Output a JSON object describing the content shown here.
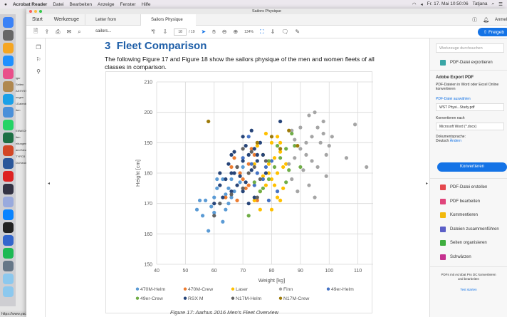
{
  "menubar": {
    "app": "Acrobat Reader",
    "items": [
      "Datei",
      "Bearbeiten",
      "Anzeige",
      "Fenster",
      "Hilfe"
    ],
    "datetime": "Fr. 17. Mai 10:50:06",
    "user": "Tatjana"
  },
  "background": {
    "texts": [
      "iger",
      "Seiten",
      "ASSYSTEM",
      "ungen",
      "l-Datenbank",
      "iten",
      "ENWICKLU",
      "iten",
      "eitungen",
      "and News",
      "TYPO3",
      "Dt-Handbuch"
    ],
    "url": "https://www.yacht"
  },
  "window": {
    "title": "Sailors Physique",
    "tabs": {
      "start": "Start",
      "tools": "Werkzeuge",
      "doc1": "Letter from sailors...",
      "doc2": "Sailors Physique"
    },
    "signin": "Anmel",
    "toolbar": {
      "page_current": "18",
      "page_total": "/ 19",
      "zoom": "134%",
      "share": "Freigeb"
    }
  },
  "document": {
    "heading_num": "3",
    "heading": "Fleet Comparison",
    "paragraph": "The following Figure 17 and Figure 18 show the sailors physique of the men and women fleets of all classes in comparison.",
    "caption": "Figure 17: Aarhus 2016 Men's Fleet Overview"
  },
  "chart_data": {
    "type": "scatter",
    "xlabel": "Weight [kg]",
    "ylabel": "Height [cm]",
    "xlim": [
      40,
      120
    ],
    "ylim": [
      150,
      210
    ],
    "xticks": [
      40,
      50,
      60,
      70,
      80,
      90,
      100,
      110,
      120
    ],
    "yticks": [
      150,
      160,
      170,
      180,
      190,
      200,
      210
    ],
    "grid": true,
    "legend": "bottom",
    "series": [
      {
        "name": "470M-Helm",
        "color": "#5b9bd5",
        "points": [
          [
            58,
            161
          ],
          [
            56,
            166
          ],
          [
            54,
            168
          ],
          [
            60,
            167
          ],
          [
            62,
            170
          ],
          [
            64,
            173
          ],
          [
            65,
            175
          ],
          [
            60,
            172
          ],
          [
            62,
            176
          ],
          [
            66,
            178
          ],
          [
            64,
            168
          ],
          [
            59,
            169
          ],
          [
            63,
            178
          ],
          [
            67,
            174
          ],
          [
            61,
            175
          ],
          [
            57,
            171
          ],
          [
            65,
            170
          ],
          [
            69,
            177
          ],
          [
            70,
            182
          ],
          [
            66,
            172
          ],
          [
            63,
            164
          ],
          [
            55,
            171
          ],
          [
            61,
            178
          ]
        ]
      },
      {
        "name": "470M-Crew",
        "color": "#ed7d31",
        "points": [
          [
            68,
            171
          ],
          [
            70,
            178
          ],
          [
            72,
            183
          ],
          [
            74,
            186
          ],
          [
            66,
            182
          ],
          [
            73,
            188
          ],
          [
            71,
            175
          ],
          [
            75,
            171
          ],
          [
            69,
            180
          ],
          [
            67,
            185
          ],
          [
            64,
            172
          ],
          [
            72,
            176
          ]
        ]
      },
      {
        "name": "Laser",
        "color": "#ffc000",
        "points": [
          [
            74,
            171
          ],
          [
            76,
            174
          ],
          [
            78,
            176
          ],
          [
            80,
            178
          ],
          [
            82,
            180
          ],
          [
            79,
            183
          ],
          [
            81,
            185
          ],
          [
            83,
            187
          ],
          [
            84,
            182
          ],
          [
            77,
            186
          ],
          [
            80,
            190
          ],
          [
            82,
            192
          ],
          [
            75,
            189
          ],
          [
            78,
            193
          ],
          [
            84,
            175
          ],
          [
            82,
            172
          ],
          [
            80,
            168
          ],
          [
            83,
            171
          ],
          [
            76,
            168
          ],
          [
            79,
            180
          ],
          [
            81,
            176
          ],
          [
            85,
            183
          ],
          [
            77,
            179
          ],
          [
            83,
            190
          ],
          [
            74,
            183
          ]
        ]
      },
      {
        "name": "Finn",
        "color": "#a5a5a5",
        "points": [
          [
            86,
            183
          ],
          [
            88,
            185
          ],
          [
            90,
            188
          ],
          [
            92,
            190
          ],
          [
            94,
            192
          ],
          [
            96,
            195
          ],
          [
            98,
            197
          ],
          [
            95,
            200
          ],
          [
            90,
            195
          ],
          [
            88,
            191
          ],
          [
            92,
            186
          ],
          [
            97,
            190
          ],
          [
            99,
            186
          ],
          [
            94,
            184
          ],
          [
            91,
            181
          ],
          [
            93,
            176
          ],
          [
            96,
            182
          ],
          [
            100,
            189
          ],
          [
            101,
            192
          ],
          [
            98,
            193
          ],
          [
            87,
            178
          ],
          [
            89,
            174
          ],
          [
            95,
            172
          ],
          [
            109,
            196
          ],
          [
            106,
            185
          ],
          [
            113,
            182
          ],
          [
            93,
            199
          ],
          [
            87,
            194
          ],
          [
            99,
            179
          ]
        ]
      },
      {
        "name": "49er-Helm",
        "color": "#4472c4",
        "points": [
          [
            70,
            185
          ],
          [
            73,
            183
          ],
          [
            75,
            180
          ],
          [
            77,
            178
          ],
          [
            74,
            176
          ],
          [
            78,
            182
          ],
          [
            80,
            184
          ],
          [
            79,
            171
          ],
          [
            76,
            190
          ],
          [
            72,
            192
          ],
          [
            82,
            174
          ]
        ]
      },
      {
        "name": "49er-Crew",
        "color": "#70ad47",
        "points": [
          [
            72,
            166
          ],
          [
            77,
            175
          ],
          [
            79,
            178
          ],
          [
            81,
            182
          ],
          [
            83,
            185
          ],
          [
            85,
            188
          ],
          [
            87,
            193
          ],
          [
            88,
            189
          ],
          [
            90,
            182
          ],
          [
            85,
            177
          ],
          [
            79,
            184
          ],
          [
            76,
            174
          ],
          [
            74,
            177
          ],
          [
            82,
            189
          ],
          [
            86,
            181
          ]
        ]
      },
      {
        "name": "RSX M",
        "color": "#264478",
        "points": [
          [
            62,
            176
          ],
          [
            64,
            178
          ],
          [
            66,
            180
          ],
          [
            68,
            182
          ],
          [
            70,
            184
          ],
          [
            72,
            186
          ],
          [
            74,
            188
          ],
          [
            76,
            190
          ],
          [
            73,
            194
          ],
          [
            71,
            189
          ],
          [
            67,
            187
          ],
          [
            65,
            183
          ],
          [
            69,
            179
          ],
          [
            71,
            177
          ],
          [
            73,
            181
          ],
          [
            75,
            184
          ],
          [
            77,
            186
          ],
          [
            78,
            180
          ],
          [
            63,
            172
          ],
          [
            66,
            174
          ],
          [
            70,
            174
          ],
          [
            72,
            170
          ],
          [
            74,
            172
          ],
          [
            68,
            176
          ],
          [
            60,
            170
          ],
          [
            62,
            180
          ],
          [
            66,
            186
          ],
          [
            70,
            192
          ],
          [
            83,
            197
          ],
          [
            75,
            186
          ],
          [
            67,
            180
          ]
        ]
      },
      {
        "name": "N17M-Helm",
        "color": "#636363",
        "points": [
          [
            62,
            170
          ],
          [
            66,
            173
          ],
          [
            70,
            175
          ],
          [
            72,
            180
          ],
          [
            74,
            182
          ],
          [
            76,
            178
          ],
          [
            78,
            184
          ],
          [
            68,
            182
          ],
          [
            70,
            188
          ],
          [
            75,
            172
          ],
          [
            73,
            187
          ],
          [
            60,
            166
          ]
        ]
      },
      {
        "name": "N17M-Crew",
        "color": "#9e7b0a",
        "points": [
          [
            58,
            197
          ],
          [
            75,
            190
          ],
          [
            80,
            192
          ],
          [
            83,
            188
          ],
          [
            86,
            194
          ],
          [
            89,
            189
          ]
        ]
      }
    ]
  },
  "right_panel": {
    "search_placeholder": "Werkzeuge durchsuchen",
    "export": "PDF-Datei exportieren",
    "section_title": "Adobe Export PDF",
    "section_desc": "PDF-Dateien in Word oder Excel Online konvertieren",
    "choose_file": "PDF-Datei auswählen",
    "file": "WST Physi...Study.pdf",
    "convert_to": "Konvertieren nach",
    "format": "Microsoft Word (*.docx)",
    "doc_lang_label": "Dokumentsprache:",
    "doc_lang": "Deutsch",
    "change": "Ändern",
    "convert_button": "Konvertieren",
    "tools": [
      {
        "label": "PDF-Datei erstellen",
        "color": "#e5484d"
      },
      {
        "label": "PDF bearbeiten",
        "color": "#e0457b"
      },
      {
        "label": "Kommentieren",
        "color": "#f2b90c"
      },
      {
        "label": "Dateien zusammenführen",
        "color": "#5b5fc7"
      },
      {
        "label": "Seiten organisieren",
        "color": "#3fae3f"
      },
      {
        "label": "Schwärzen",
        "color": "#c5318f"
      }
    ],
    "promo": "PDFs mit Acrobat Pro DC konvertieren und bearbeiten",
    "trial": "Test starten"
  }
}
